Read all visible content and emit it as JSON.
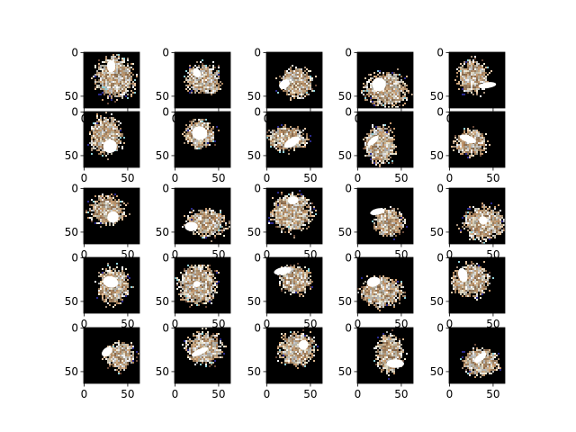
{
  "figure": {
    "rows": 5,
    "cols": 5,
    "background_color": "#ffffff",
    "panel_background": "#000000",
    "image_colors": [
      "#d9b58c",
      "#f2ead2",
      "#c79a6e",
      "#ffffff",
      "#6b4a3a",
      "#a58f7a",
      "#2a2a8c",
      "#8fd0d8",
      "#e8c8a8"
    ],
    "x_ticks": [
      "0",
      "50"
    ],
    "y_ticks": [
      "0",
      "50"
    ],
    "x_tick_values": [
      0,
      50
    ],
    "y_tick_values": [
      0,
      50
    ],
    "image_extent": [
      0,
      64
    ],
    "panels": [
      {
        "id": 1
      },
      {
        "id": 2
      },
      {
        "id": 3
      },
      {
        "id": 4
      },
      {
        "id": 5
      },
      {
        "id": 6
      },
      {
        "id": 7
      },
      {
        "id": 8
      },
      {
        "id": 9
      },
      {
        "id": 10
      },
      {
        "id": 11
      },
      {
        "id": 12
      },
      {
        "id": 13
      },
      {
        "id": 14
      },
      {
        "id": 15
      },
      {
        "id": 16
      },
      {
        "id": 17
      },
      {
        "id": 18
      },
      {
        "id": 19
      },
      {
        "id": 20
      },
      {
        "id": 21
      },
      {
        "id": 22
      },
      {
        "id": 23
      },
      {
        "id": 24
      },
      {
        "id": 25
      }
    ]
  }
}
